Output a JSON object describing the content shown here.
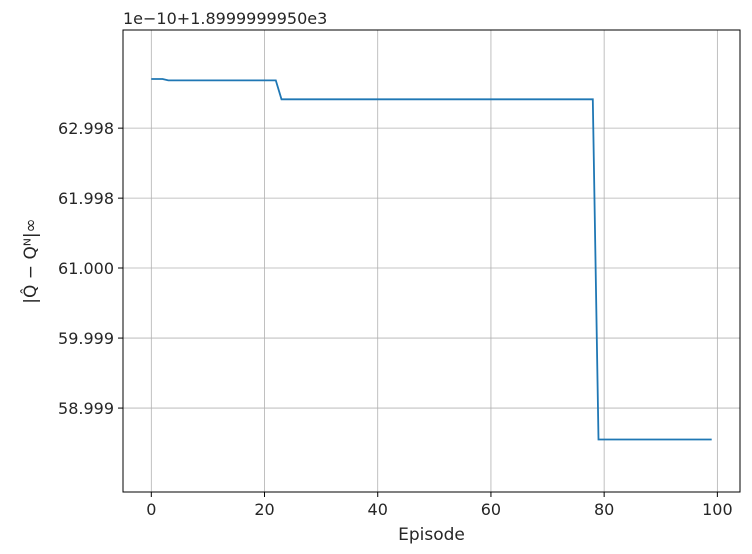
{
  "chart_data": {
    "type": "line",
    "title": "",
    "xlabel": "Episode",
    "ylabel": "|Q̂ − Qᴺ|∞",
    "offset_text": "1e−10+1.8999999950e3",
    "xlim": [
      -5,
      104
    ],
    "ylim": [
      57.8,
      64.4
    ],
    "grid": true,
    "x_ticks": [
      0,
      20,
      40,
      60,
      80,
      100
    ],
    "x_tick_labels": [
      "0",
      "20",
      "40",
      "60",
      "80",
      "100"
    ],
    "y_ticks": [
      58.999,
      59.999,
      61.0,
      61.998,
      62.998
    ],
    "y_tick_labels": [
      "58.999",
      "59.999",
      "61.000",
      "61.998",
      "62.998"
    ],
    "series": [
      {
        "color": "#1f77b4",
        "x": [
          0,
          2,
          3,
          22,
          23,
          78,
          79,
          99
        ],
        "y": [
          63.7,
          63.7,
          63.68,
          63.68,
          63.41,
          63.41,
          58.55,
          58.55
        ]
      }
    ]
  }
}
